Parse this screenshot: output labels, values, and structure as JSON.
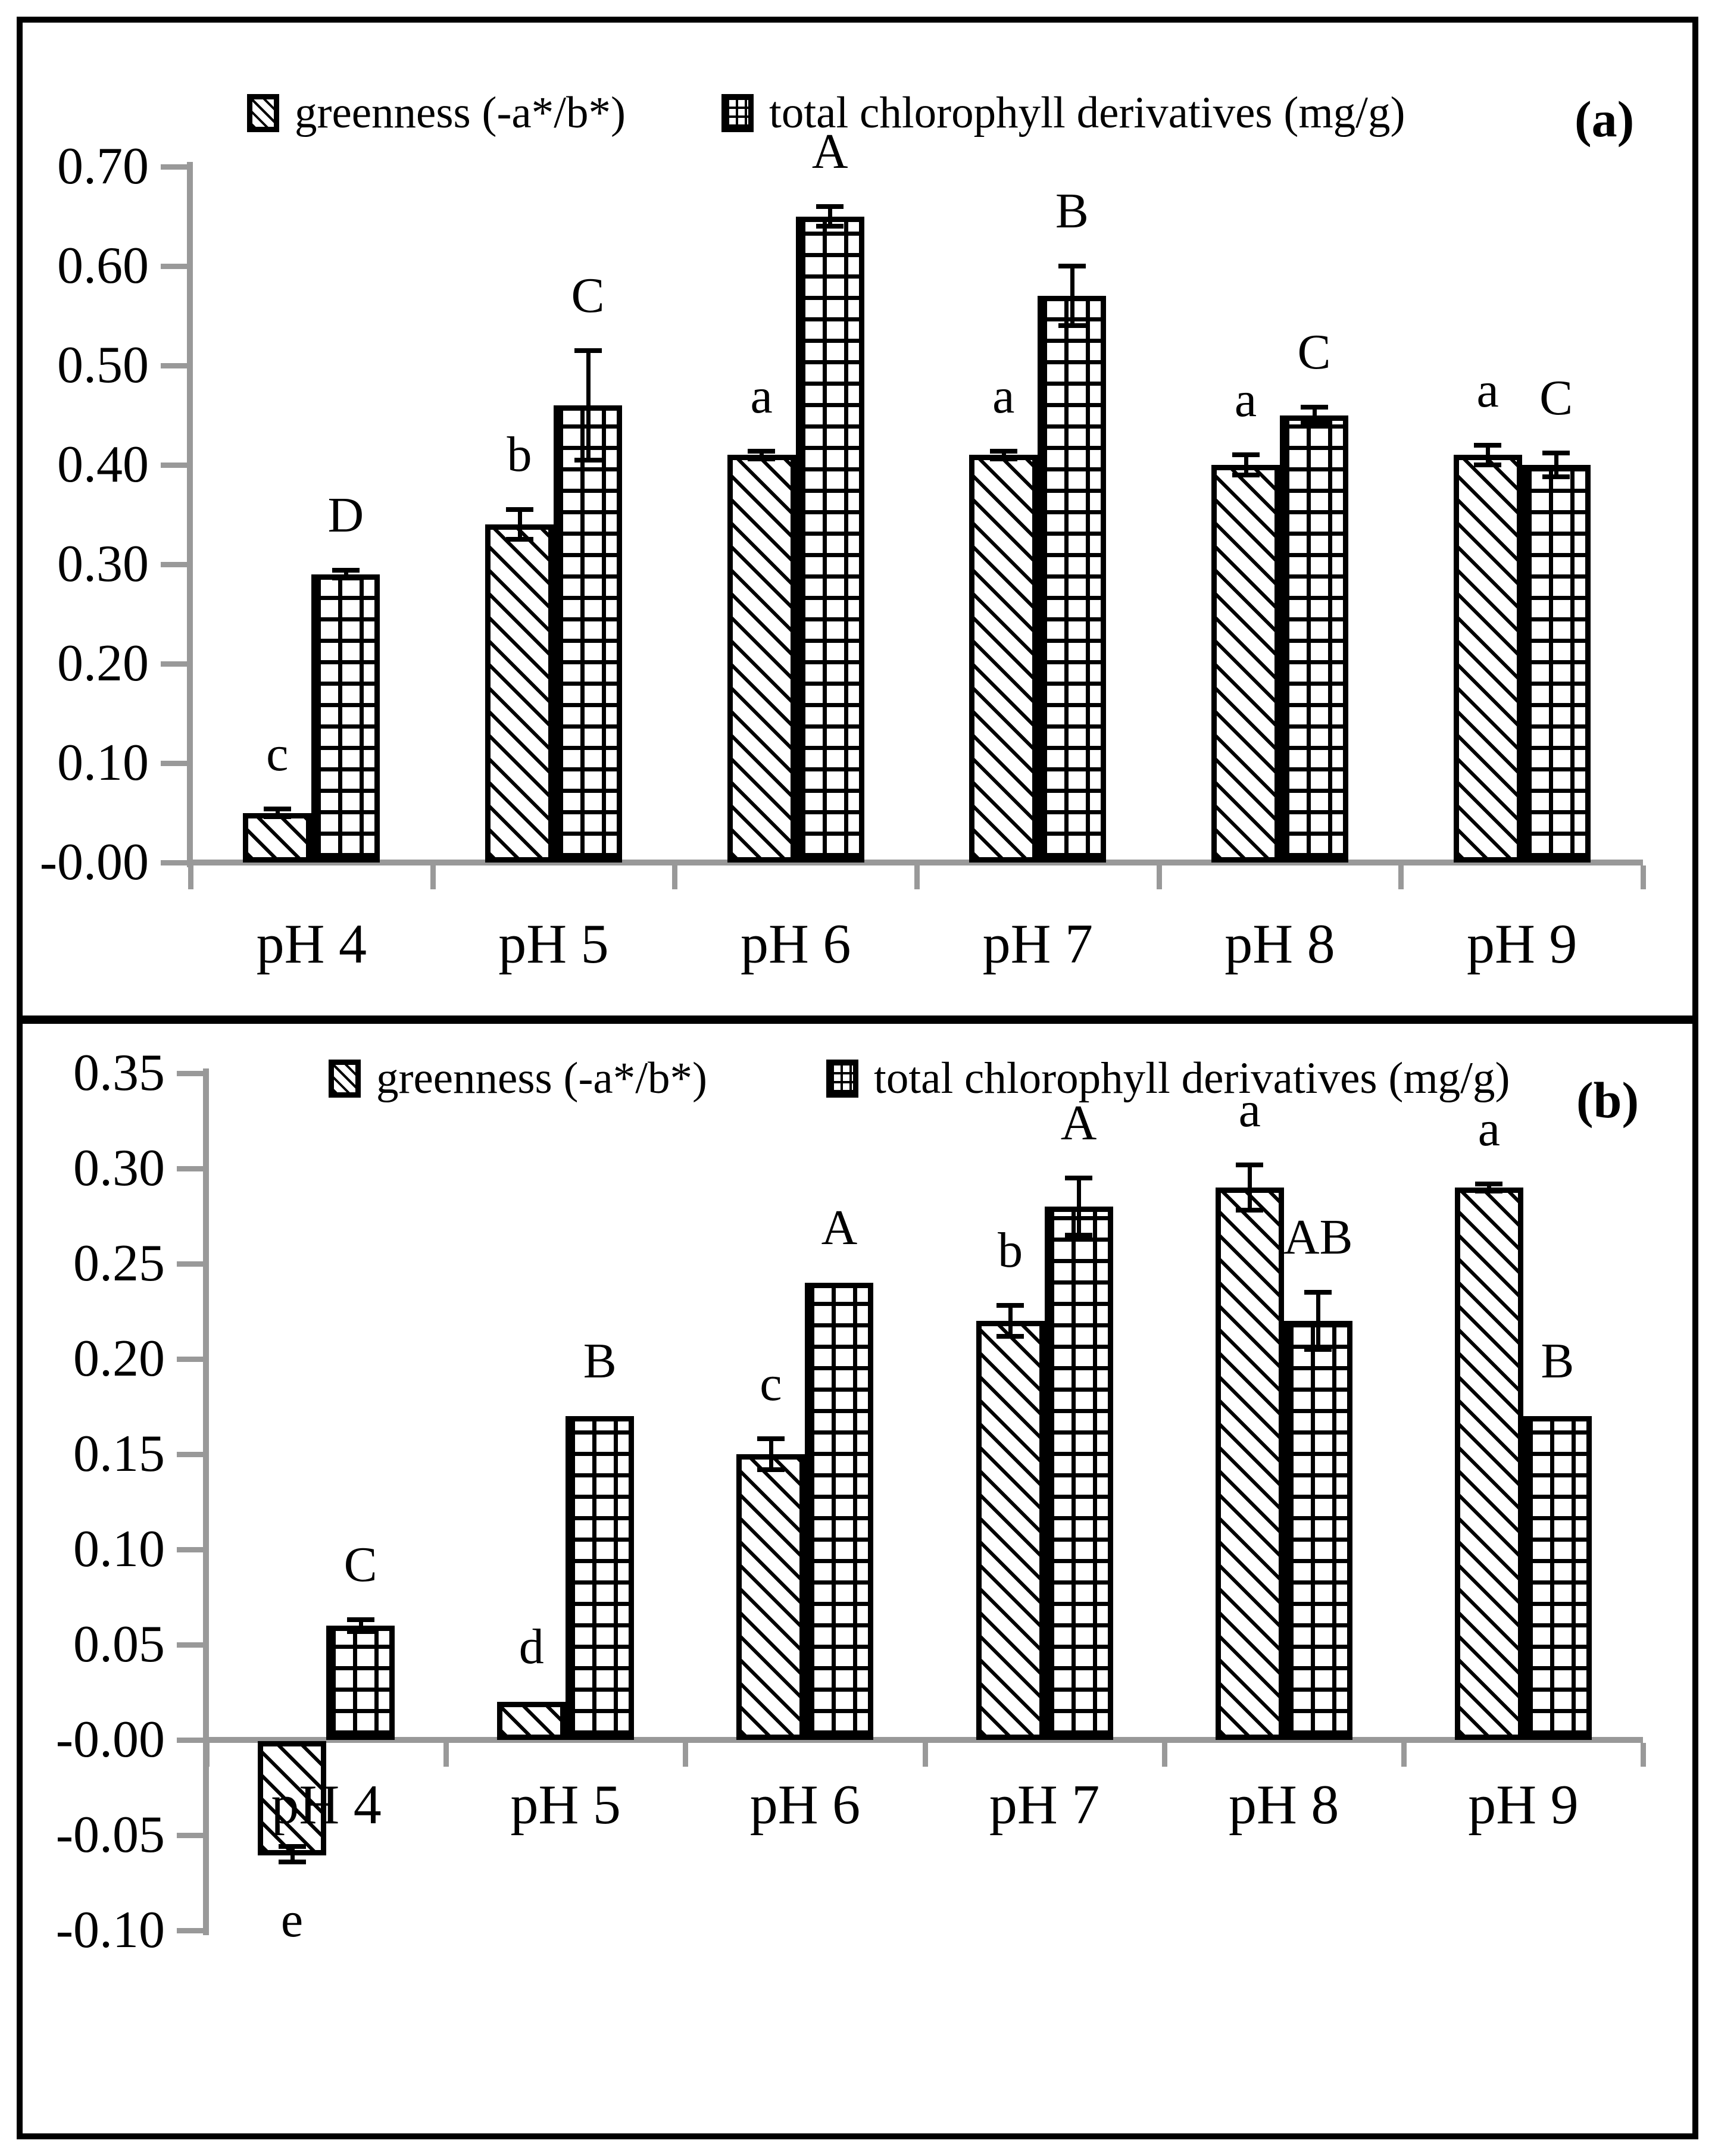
{
  "figure": {
    "background": "#ffffff",
    "frame_color": "#000000",
    "axis_color": "#999999",
    "text_color": "#000000"
  },
  "chart_data": [
    {
      "type": "bar",
      "panel_label": "(a)",
      "title": "",
      "xlabel": "",
      "ylabel": "",
      "categories": [
        "pH 4",
        "pH 5",
        "pH 6",
        "pH 7",
        "pH 8",
        "pH 9"
      ],
      "series": [
        {
          "name": "greenness (-a*/b*)",
          "pattern": "diagonal-hatch",
          "values": [
            0.05,
            0.34,
            0.41,
            0.41,
            0.4,
            0.41
          ],
          "errors": [
            0.004,
            0.015,
            0.004,
            0.004,
            0.01,
            0.01
          ],
          "letters": [
            "c",
            "b",
            "a",
            "a",
            "a",
            "a"
          ]
        },
        {
          "name": "total chlorophyll derivatives (mg/g)",
          "pattern": "grid-hatch",
          "values": [
            0.29,
            0.46,
            0.65,
            0.57,
            0.45,
            0.4
          ],
          "errors": [
            0.004,
            0.055,
            0.01,
            0.03,
            0.008,
            0.012
          ],
          "letters": [
            "D",
            "C",
            "A",
            "B",
            "C",
            "C"
          ]
        }
      ],
      "ylim": [
        0.0,
        0.7
      ],
      "ytick_step": 0.1,
      "grid": false,
      "legend_position": "top"
    },
    {
      "type": "bar",
      "panel_label": "(b)",
      "title": "",
      "xlabel": "",
      "ylabel": "",
      "categories": [
        "pH 4",
        "pH 5",
        "pH 6",
        "pH 7",
        "pH 8",
        "pH 9"
      ],
      "series": [
        {
          "name": "greenness (-a*/b*)",
          "pattern": "diagonal-hatch",
          "values": [
            -0.06,
            0.02,
            0.15,
            0.22,
            0.29,
            0.29
          ],
          "errors": [
            0.004,
            0,
            0.008,
            0.008,
            0.012,
            0.002
          ],
          "letters": [
            "e",
            "d",
            "c",
            "b",
            "a",
            "a"
          ]
        },
        {
          "name": "total chlorophyll derivatives (mg/g)",
          "pattern": "grid-hatch",
          "values": [
            0.06,
            0.17,
            0.24,
            0.28,
            0.22,
            0.17
          ],
          "errors": [
            0.003,
            0,
            0,
            0.015,
            0.015,
            0
          ],
          "letters": [
            "C",
            "B",
            "A",
            "A",
            "AB",
            "B"
          ]
        }
      ],
      "ylim": [
        -0.1,
        0.35
      ],
      "ytick_step": 0.05,
      "grid": false,
      "legend_position": "top"
    }
  ]
}
